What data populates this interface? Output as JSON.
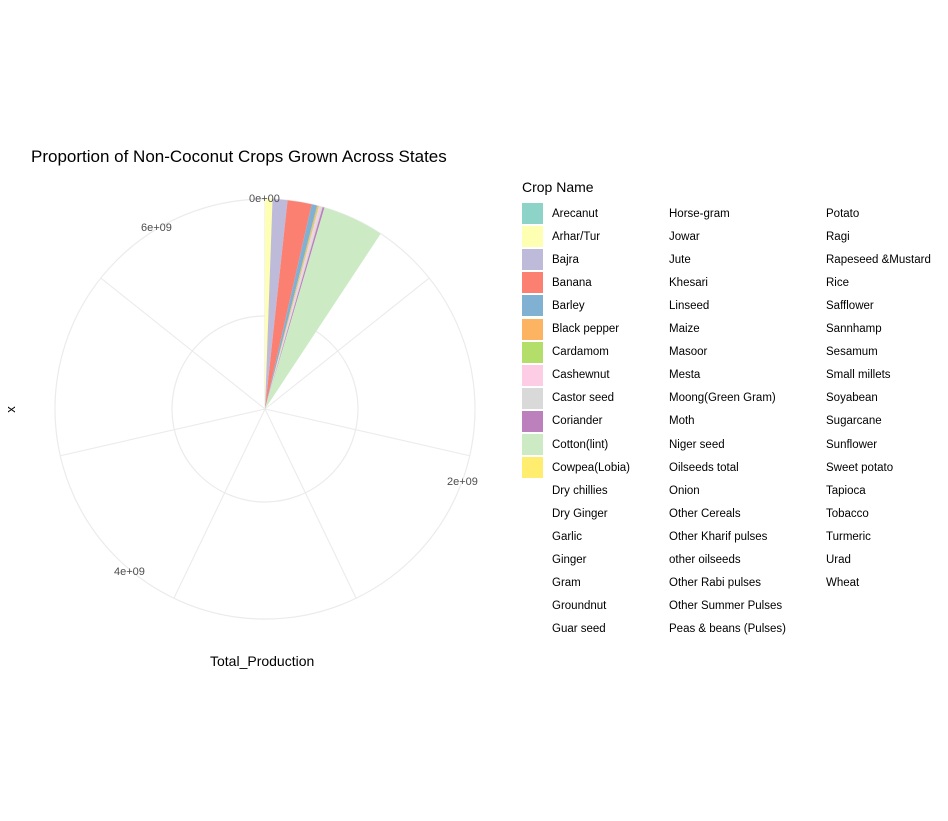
{
  "chart_data": {
    "type": "pie",
    "title": "Proportion of Non-Coconut Crops Grown Across States",
    "xlabel": "Total_Production",
    "ylabel": "x",
    "theta_range": [
      0,
      7000000000
    ],
    "theta_ticks": [
      "0e+00",
      "2e+09",
      "4e+09",
      "6e+09"
    ],
    "theta_tick_values": [
      0,
      2000000000,
      4000000000,
      6000000000
    ],
    "legend_title": "Crop Name",
    "legend_position": "right",
    "grid": true,
    "slices": [
      {
        "name": "Arecanut",
        "value": 0,
        "color": "#8DD3C7"
      },
      {
        "name": "Arhar/Tur",
        "value": 40000000,
        "color": "#FFFFB3"
      },
      {
        "name": "Bajra",
        "value": 80000000,
        "color": "#BEBADA"
      },
      {
        "name": "Banana",
        "value": 130000000,
        "color": "#FB8072"
      },
      {
        "name": "Barley",
        "value": 30000000,
        "color": "#80B1D3"
      },
      {
        "name": "Black pepper",
        "value": 5000000,
        "color": "#FDB462"
      },
      {
        "name": "Cardamom",
        "value": 5000000,
        "color": "#B3DE69"
      },
      {
        "name": "Cashewnut",
        "value": 10000000,
        "color": "#FCCDE5"
      },
      {
        "name": "Castor seed",
        "value": 10000000,
        "color": "#D9D9D9"
      },
      {
        "name": "Coriander",
        "value": 10000000,
        "color": "#BC80BD"
      },
      {
        "name": "Cotton(lint)",
        "value": 330000000,
        "color": "#CCEBC5"
      },
      {
        "name": "Cowpea(Lobia)",
        "value": 0,
        "color": "#FFED6F"
      },
      {
        "name": "Dry chillies",
        "value": 0
      },
      {
        "name": "Dry Ginger",
        "value": 0
      },
      {
        "name": "Garlic",
        "value": 0
      },
      {
        "name": "Ginger",
        "value": 0
      },
      {
        "name": "Gram",
        "value": 0
      },
      {
        "name": "Groundnut",
        "value": 0
      },
      {
        "name": "Guar seed",
        "value": 0
      },
      {
        "name": "Horse-gram",
        "value": 0
      },
      {
        "name": "Jowar",
        "value": 0
      },
      {
        "name": "Jute",
        "value": 0
      },
      {
        "name": "Khesari",
        "value": 0
      },
      {
        "name": "Linseed",
        "value": 0
      },
      {
        "name": "Maize",
        "value": 0
      },
      {
        "name": "Masoor",
        "value": 0
      },
      {
        "name": "Mesta",
        "value": 0
      },
      {
        "name": "Moong(Green Gram)",
        "value": 0
      },
      {
        "name": "Moth",
        "value": 0
      },
      {
        "name": "Niger seed",
        "value": 0
      },
      {
        "name": "Oilseeds total",
        "value": 0
      },
      {
        "name": "Onion",
        "value": 0
      },
      {
        "name": "Other Cereals",
        "value": 0
      },
      {
        "name": "Other Kharif pulses",
        "value": 0
      },
      {
        "name": "other oilseeds",
        "value": 0
      },
      {
        "name": "Other Rabi pulses",
        "value": 0
      },
      {
        "name": "Other Summer Pulses",
        "value": 0
      },
      {
        "name": "Peas & beans (Pulses)",
        "value": 0
      },
      {
        "name": "Potato",
        "value": 0
      },
      {
        "name": "Ragi",
        "value": 0
      },
      {
        "name": "Rapeseed &Mustard",
        "value": 0
      },
      {
        "name": "Rice",
        "value": 0
      },
      {
        "name": "Safflower",
        "value": 0
      },
      {
        "name": "Sannhamp",
        "value": 0
      },
      {
        "name": "Sesamum",
        "value": 0
      },
      {
        "name": "Small millets",
        "value": 0
      },
      {
        "name": "Soyabean",
        "value": 0
      },
      {
        "name": "Sugarcane",
        "value": 0
      },
      {
        "name": "Sunflower",
        "value": 0
      },
      {
        "name": "Sweet potato",
        "value": 0
      },
      {
        "name": "Tapioca",
        "value": 0
      },
      {
        "name": "Tobacco",
        "value": 0
      },
      {
        "name": "Turmeric",
        "value": 0
      },
      {
        "name": "Urad",
        "value": 0
      },
      {
        "name": "Wheat",
        "value": 0
      }
    ]
  }
}
